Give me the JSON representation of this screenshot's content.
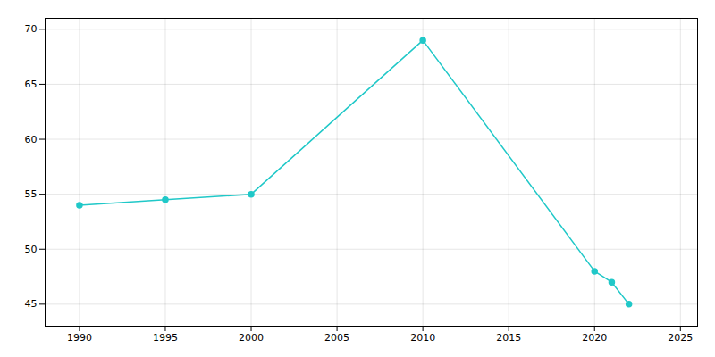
{
  "chart_data": {
    "type": "line",
    "x": [
      1990,
      1995,
      2000,
      2010,
      2020,
      2021,
      2022
    ],
    "values": [
      54,
      54.5,
      55,
      69,
      48,
      47,
      45
    ],
    "color": "#20C8C8",
    "marker": "circle",
    "xlim": [
      1988,
      2026
    ],
    "ylim": [
      43,
      71
    ],
    "xticks": [
      1990,
      1995,
      2000,
      2005,
      2010,
      2015,
      2020,
      2025
    ],
    "yticks": [
      45,
      50,
      55,
      60,
      65,
      70
    ],
    "grid": true
  }
}
